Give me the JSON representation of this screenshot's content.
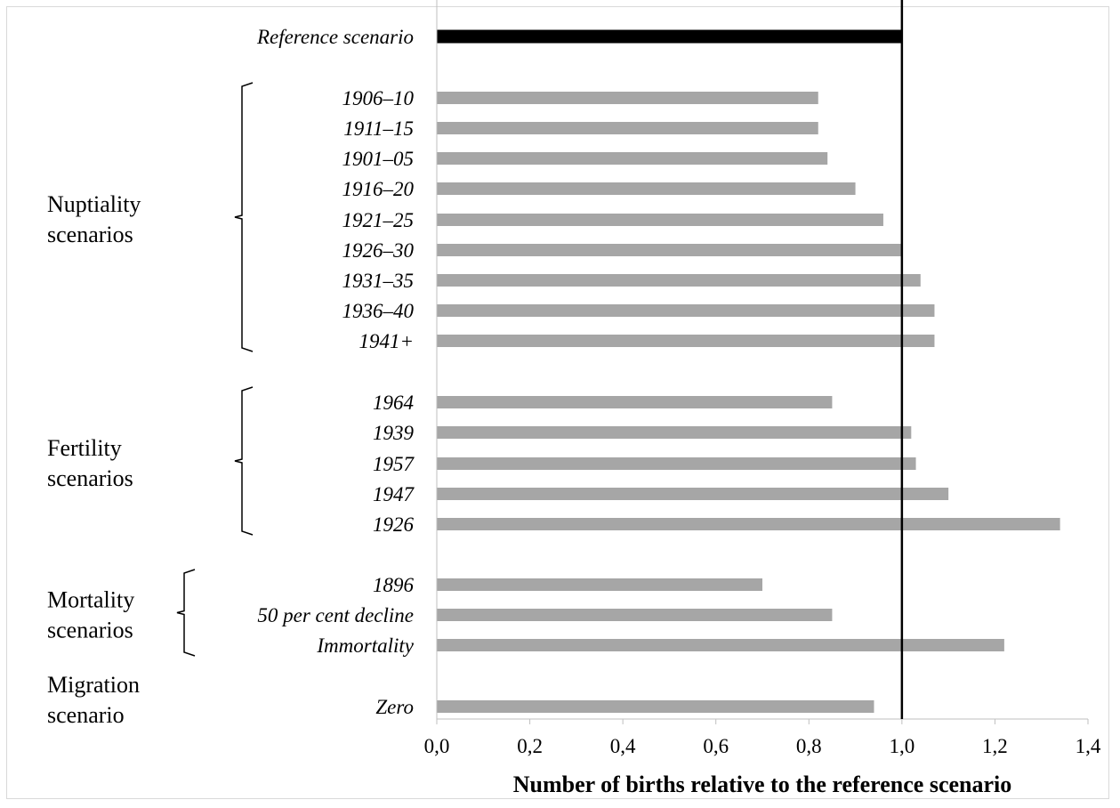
{
  "chart_data": {
    "type": "bar",
    "orientation": "horizontal",
    "xlabel": "Number of births relative to the reference scenario",
    "xlim": [
      0,
      1.4
    ],
    "x_ticks": [
      "0,0",
      "0,2",
      "0,4",
      "0,6",
      "0,8",
      "1,0",
      "1,2",
      "1,4"
    ],
    "reference_line": 1.0,
    "grid": false,
    "categories": [
      {
        "label": "Reference scenario",
        "value": 1.0,
        "color": "#000000"
      },
      {
        "label": "1906–10",
        "value": 0.82,
        "color": "#a6a6a6"
      },
      {
        "label": "1911–15",
        "value": 0.82,
        "color": "#a6a6a6"
      },
      {
        "label": "1901–05",
        "value": 0.84,
        "color": "#a6a6a6"
      },
      {
        "label": "1916–20",
        "value": 0.9,
        "color": "#a6a6a6"
      },
      {
        "label": "1921–25",
        "value": 0.96,
        "color": "#a6a6a6"
      },
      {
        "label": "1926–30",
        "value": 1.0,
        "color": "#a6a6a6"
      },
      {
        "label": "1931–35",
        "value": 1.04,
        "color": "#a6a6a6"
      },
      {
        "label": "1936–40",
        "value": 1.07,
        "color": "#a6a6a6"
      },
      {
        "label": "1941+",
        "value": 1.07,
        "color": "#a6a6a6"
      },
      {
        "label": "1964",
        "value": 0.85,
        "color": "#a6a6a6"
      },
      {
        "label": "1939",
        "value": 1.02,
        "color": "#a6a6a6"
      },
      {
        "label": "1957",
        "value": 1.03,
        "color": "#a6a6a6"
      },
      {
        "label": "1947",
        "value": 1.1,
        "color": "#a6a6a6"
      },
      {
        "label": "1926",
        "value": 1.34,
        "color": "#a6a6a6"
      },
      {
        "label": "1896",
        "value": 0.7,
        "color": "#a6a6a6"
      },
      {
        "label": "50 per cent decline",
        "value": 0.85,
        "color": "#a6a6a6"
      },
      {
        "label": "Immortality",
        "value": 1.22,
        "color": "#a6a6a6"
      },
      {
        "label": "Zero",
        "value": 0.94,
        "color": "#a6a6a6"
      }
    ],
    "groups": [
      {
        "lines": [
          "Nuptiality",
          "scenarios"
        ],
        "first": 1,
        "last": 9
      },
      {
        "lines": [
          "Fertility",
          "scenarios"
        ],
        "first": 10,
        "last": 14
      },
      {
        "lines": [
          "Mortality",
          "scenarios"
        ],
        "first": 15,
        "last": 17
      },
      {
        "lines": [
          "Migration",
          "scenario"
        ],
        "first": 18,
        "last": 18
      }
    ]
  }
}
